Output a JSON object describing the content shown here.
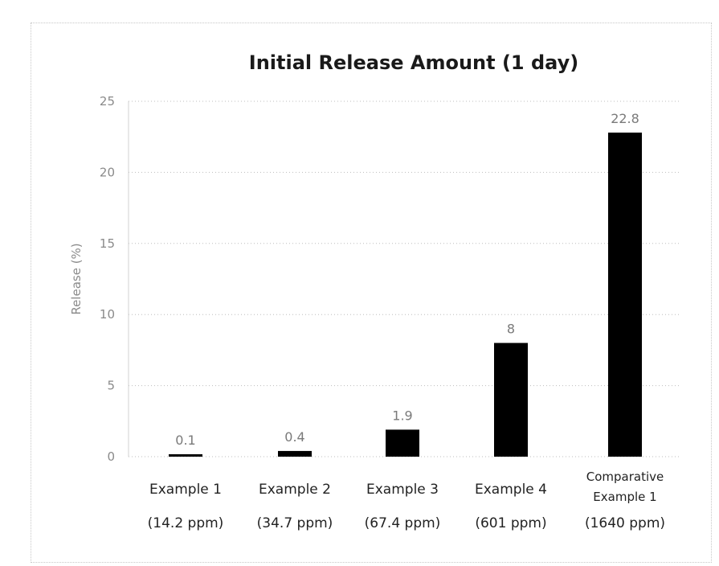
{
  "chart_data": {
    "type": "bar",
    "title": "Initial Release Amount (1 day)",
    "ylabel": "Release (%)",
    "xlabel": "",
    "ylim": [
      0,
      25
    ],
    "yticks": [
      0,
      5,
      10,
      15,
      20,
      25
    ],
    "grid": true,
    "categories": [
      [
        "Example 1",
        "(14.2 ppm)"
      ],
      [
        "Example 2",
        "(34.7 ppm)"
      ],
      [
        "Example 3",
        "(67.4 ppm)"
      ],
      [
        "Example 4",
        "(601 ppm)"
      ],
      [
        "Comparative",
        "Example 1",
        "(1640 ppm)"
      ]
    ],
    "values": [
      0.1,
      0.4,
      1.9,
      8,
      22.8
    ],
    "data_labels": [
      "0.1",
      "0.4",
      "1.9",
      "8",
      "22.8"
    ],
    "bar_color": "#000000"
  }
}
